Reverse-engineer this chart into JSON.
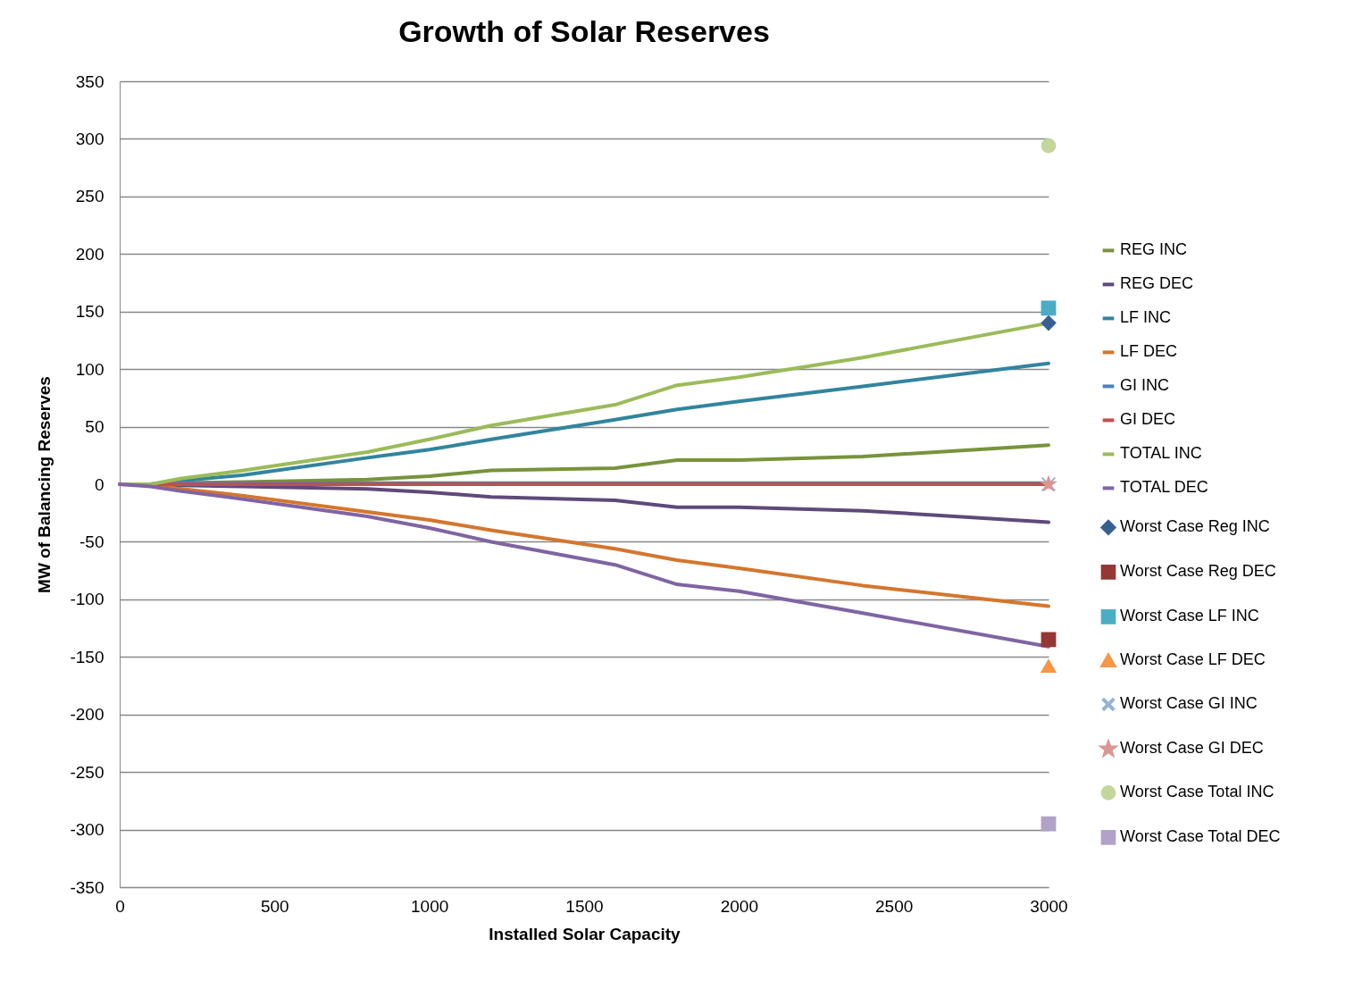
{
  "chart_data": {
    "type": "line",
    "title": "Growth of Solar Reserves",
    "xlabel": "Installed Solar Capacity",
    "ylabel": "MW of Balancing  Reserves",
    "x": [
      0,
      100,
      200,
      400,
      800,
      1000,
      1200,
      1600,
      1800,
      2000,
      2400,
      3000
    ],
    "xlim": [
      0,
      3000
    ],
    "xticks": [
      0,
      500,
      {
        "value": 1000,
        "label": "1000"
      },
      {
        "value": 1500,
        "label": "1500"
      },
      {
        "value": 2000,
        "label": "2000"
      },
      {
        "value": 2500,
        "label": "2500"
      },
      {
        "value": 3000,
        "label": "3000"
      }
    ],
    "ylim": [
      -350,
      350
    ],
    "yticks": [
      -350,
      -300,
      -250,
      -200,
      -150,
      -100,
      -50,
      0,
      50,
      100,
      150,
      200,
      250,
      300,
      350
    ],
    "grid": "y",
    "legend": "right",
    "series": [
      {
        "name": "REG INC",
        "marker": "none",
        "color": "#77933c",
        "values": [
          0,
          0,
          1,
          2,
          4,
          7,
          12,
          14,
          21,
          21,
          24,
          34
        ]
      },
      {
        "name": "REG DEC",
        "marker": "none",
        "color": "#5f497a",
        "values": [
          0,
          0,
          -1,
          -2,
          -4,
          -7,
          -11,
          -14,
          -20,
          -20,
          -23,
          -33
        ]
      },
      {
        "name": "LF INC",
        "marker": "none",
        "color": "#31859c",
        "values": [
          0,
          0,
          3,
          8,
          23,
          30,
          39,
          56,
          65,
          72,
          85,
          105
        ]
      },
      {
        "name": "LF DEC",
        "marker": "none",
        "color": "#d4762e",
        "values": [
          0,
          -1,
          -4,
          -10,
          -24,
          -31,
          -40,
          -56,
          -66,
          -73,
          -88,
          -106
        ]
      },
      {
        "name": "GI INC",
        "marker": "none",
        "color": "#4f81bd",
        "values": [
          0,
          0,
          1,
          1,
          1,
          1,
          1,
          1,
          1,
          1,
          1,
          1
        ]
      },
      {
        "name": "GI DEC",
        "marker": "none",
        "color": "#c0504d",
        "values": [
          0,
          0,
          0,
          0,
          0,
          0,
          0,
          0,
          0,
          0,
          0,
          0
        ]
      },
      {
        "name": "TOTAL INC",
        "marker": "none",
        "color": "#9bbb59",
        "values": [
          0,
          0,
          5,
          12,
          28,
          39,
          51,
          69,
          86,
          93,
          110,
          140
        ]
      },
      {
        "name": "TOTAL DEC",
        "marker": "none",
        "color": "#8064a2",
        "values": [
          0,
          -2,
          -6,
          -13,
          -28,
          -38,
          -50,
          -70,
          -87,
          -93,
          -112,
          -141
        ]
      },
      {
        "name": "Worst Case  Reg INC",
        "type": "scatter",
        "marker": "diamond",
        "color": "#376092",
        "values": [
          null,
          null,
          null,
          null,
          null,
          null,
          null,
          null,
          null,
          null,
          null,
          140
        ]
      },
      {
        "name": "Worst Case  Reg DEC",
        "type": "scatter",
        "marker": "square",
        "color": "#953735",
        "values": [
          null,
          null,
          null,
          null,
          null,
          null,
          null,
          null,
          null,
          null,
          null,
          -135
        ]
      },
      {
        "name": "Worst Case  LF INC",
        "type": "scatter",
        "marker": "square",
        "color": "#4bacc6",
        "values": [
          null,
          null,
          null,
          null,
          null,
          null,
          null,
          null,
          null,
          null,
          null,
          153
        ]
      },
      {
        "name": "Worst Case  LF DEC",
        "type": "scatter",
        "marker": "triangle",
        "color": "#f79646",
        "values": [
          null,
          null,
          null,
          null,
          null,
          null,
          null,
          null,
          null,
          null,
          null,
          -158
        ]
      },
      {
        "name": "Worst Case  GI INC",
        "type": "scatter",
        "marker": "cross",
        "color": "#95b3d7",
        "values": [
          null,
          null,
          null,
          null,
          null,
          null,
          null,
          null,
          null,
          null,
          null,
          0
        ]
      },
      {
        "name": "Worst Case  GI DEC",
        "type": "scatter",
        "marker": "star",
        "color": "#d99694",
        "values": [
          null,
          null,
          null,
          null,
          null,
          null,
          null,
          null,
          null,
          null,
          null,
          0
        ]
      },
      {
        "name": "Worst Case  Total INC",
        "type": "scatter",
        "marker": "circle",
        "color": "#c3d69b",
        "values": [
          null,
          null,
          null,
          null,
          null,
          null,
          null,
          null,
          null,
          null,
          null,
          294
        ]
      },
      {
        "name": "Worst Case  Total DEC",
        "type": "scatter",
        "marker": "square",
        "color": "#b3a2c7",
        "values": [
          null,
          null,
          null,
          null,
          null,
          null,
          null,
          null,
          null,
          null,
          null,
          -295
        ]
      }
    ]
  }
}
